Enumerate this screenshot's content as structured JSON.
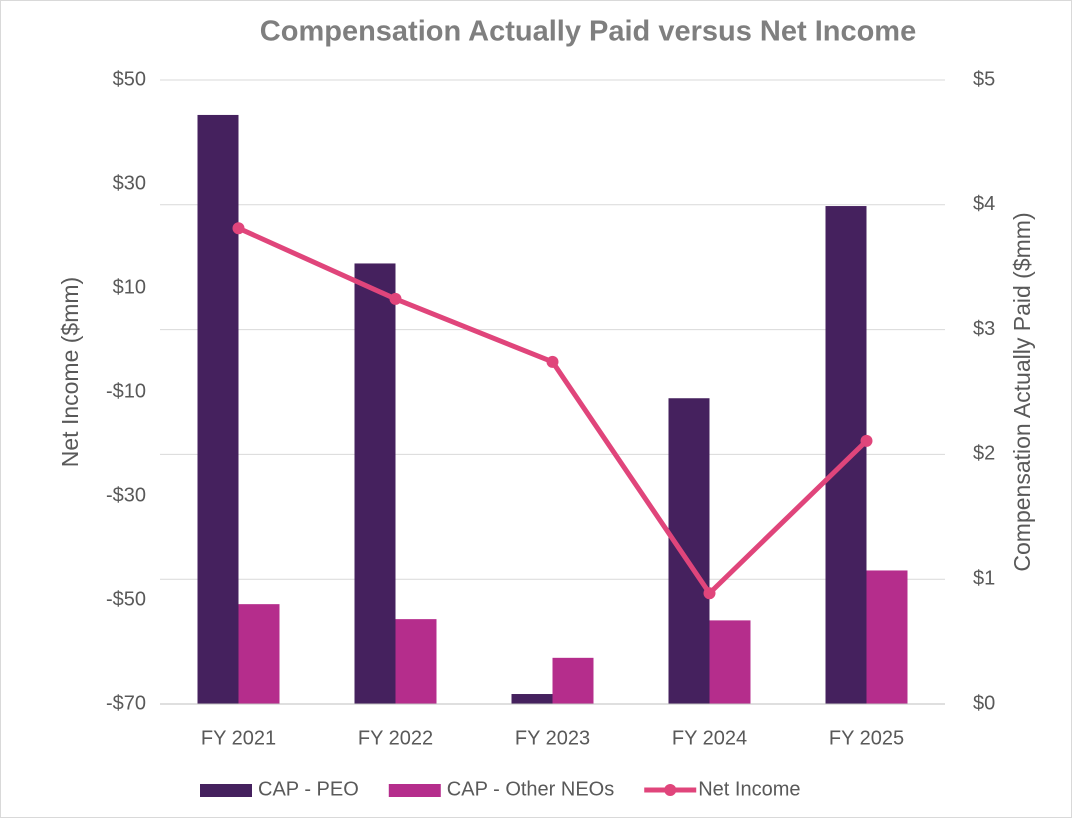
{
  "chart_data": {
    "type": "bar",
    "title": "Compensation Actually Paid versus Net Income",
    "y_label": "Net Income ($mm)",
    "y2_label": "Compensation Actually Paid ($mm)",
    "categories": [
      "FY 2021",
      "FY 2022",
      "FY 2023",
      "FY 2024",
      "FY 2025"
    ],
    "series": [
      {
        "name": "CAP - PEO",
        "type": "bar",
        "axis": "y2",
        "color": "#45215e",
        "values": [
          4.72,
          3.53,
          0.08,
          2.45,
          3.99
        ]
      },
      {
        "name": "CAP - Other NEOs",
        "type": "bar",
        "axis": "y2",
        "color": "#b52d8c",
        "values": [
          0.8,
          0.68,
          0.37,
          0.67,
          1.07
        ]
      },
      {
        "name": "Net Income",
        "type": "line",
        "color": "#e0457b",
        "values": [
          21.5,
          7.9,
          -4.2,
          -48.7,
          -19.4
        ]
      }
    ],
    "ylim": [
      -70,
      50
    ],
    "yticks": [
      {
        "value": -70,
        "label": "-$70"
      },
      {
        "value": -50,
        "label": "-$50"
      },
      {
        "value": -30,
        "label": "-$30"
      },
      {
        "value": -10,
        "label": "-$10"
      },
      {
        "value": 10,
        "label": "$10"
      },
      {
        "value": 30,
        "label": "$30"
      },
      {
        "value": 50,
        "label": "$50"
      }
    ],
    "y2lim": [
      0,
      5
    ],
    "y2ticks": [
      {
        "value": 0,
        "label": "$0"
      },
      {
        "value": 1,
        "label": "$1"
      },
      {
        "value": 2,
        "label": "$2"
      },
      {
        "value": 3,
        "label": "$3"
      },
      {
        "value": 4,
        "label": "$4"
      },
      {
        "value": 5,
        "label": "$5"
      }
    ],
    "grid": true,
    "legend": "bottom"
  }
}
